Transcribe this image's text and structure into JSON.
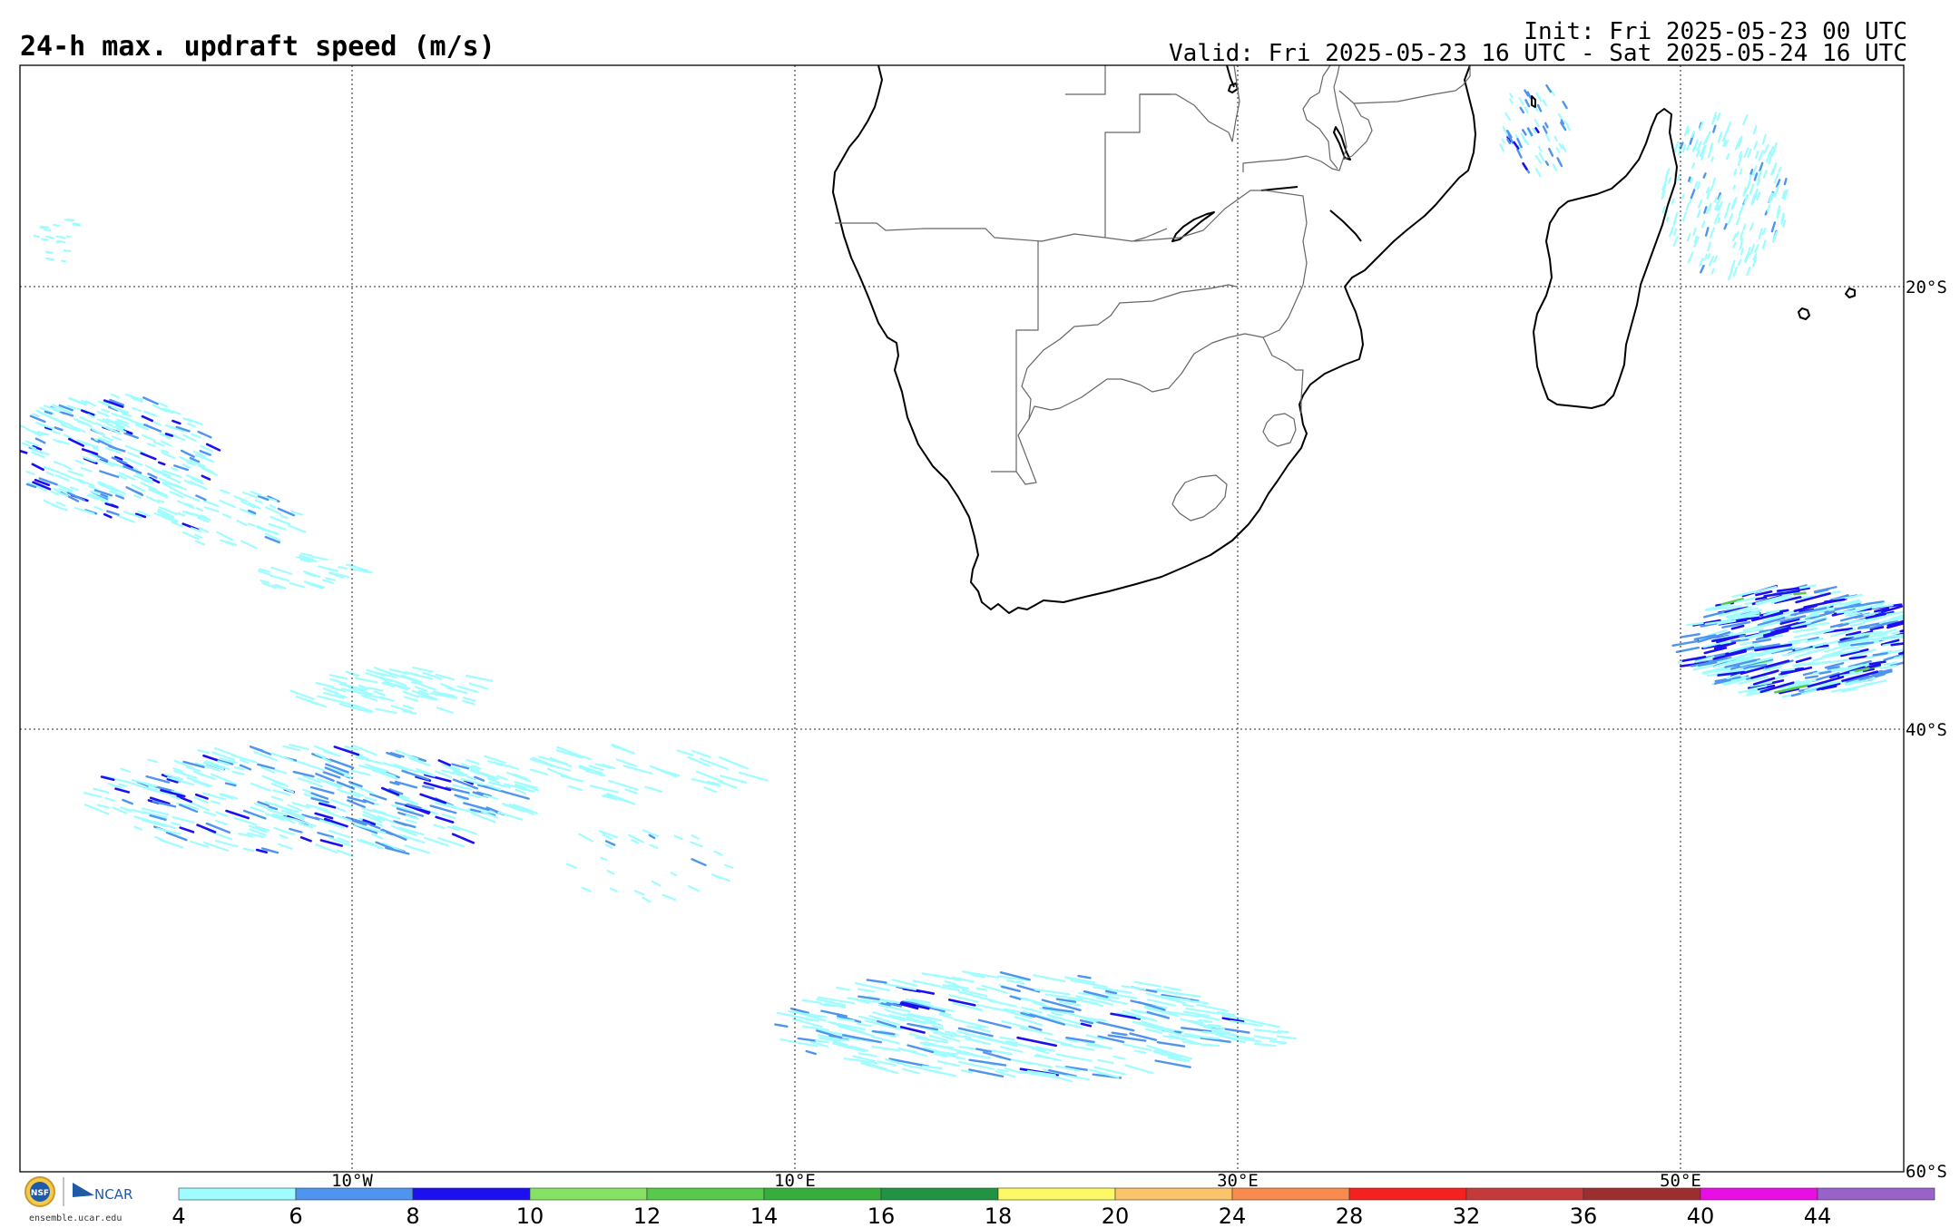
{
  "header": {
    "title": "24-h max. updraft speed (m/s)",
    "init": "Init: Fri 2025-05-23 00 UTC",
    "valid": "Valid: Fri 2025-05-23 16 UTC - Sat 2025-05-24 16 UTC"
  },
  "map": {
    "lon_labels": [
      "10°W",
      "10°E",
      "30°E",
      "50°E"
    ],
    "lat_labels": [
      "20°S",
      "40°S",
      "60°S"
    ]
  },
  "colorbar": {
    "ticks": [
      "4",
      "6",
      "8",
      "10",
      "12",
      "14",
      "16",
      "18",
      "20",
      "24",
      "28",
      "32",
      "36",
      "40",
      "44"
    ],
    "colors": [
      "#9ffcff",
      "#4f94ef",
      "#1c10f0",
      "#86e264",
      "#58c94d",
      "#37ae3c",
      "#229343",
      "#fdf866",
      "#fbc46b",
      "#fa8b4f",
      "#f42121",
      "#c43a3b",
      "#9b2f2f",
      "#e90ee4",
      "#9863c9"
    ]
  },
  "logos": {
    "nsf": "NSF",
    "ncar": "NCAR",
    "url": "ensemble.ucar.edu"
  },
  "palette": {
    "light_cyan": "#9ffcff",
    "mid_blue": "#4f94ef",
    "dark_blue": "#1c10f0",
    "green": "#58c94d"
  }
}
